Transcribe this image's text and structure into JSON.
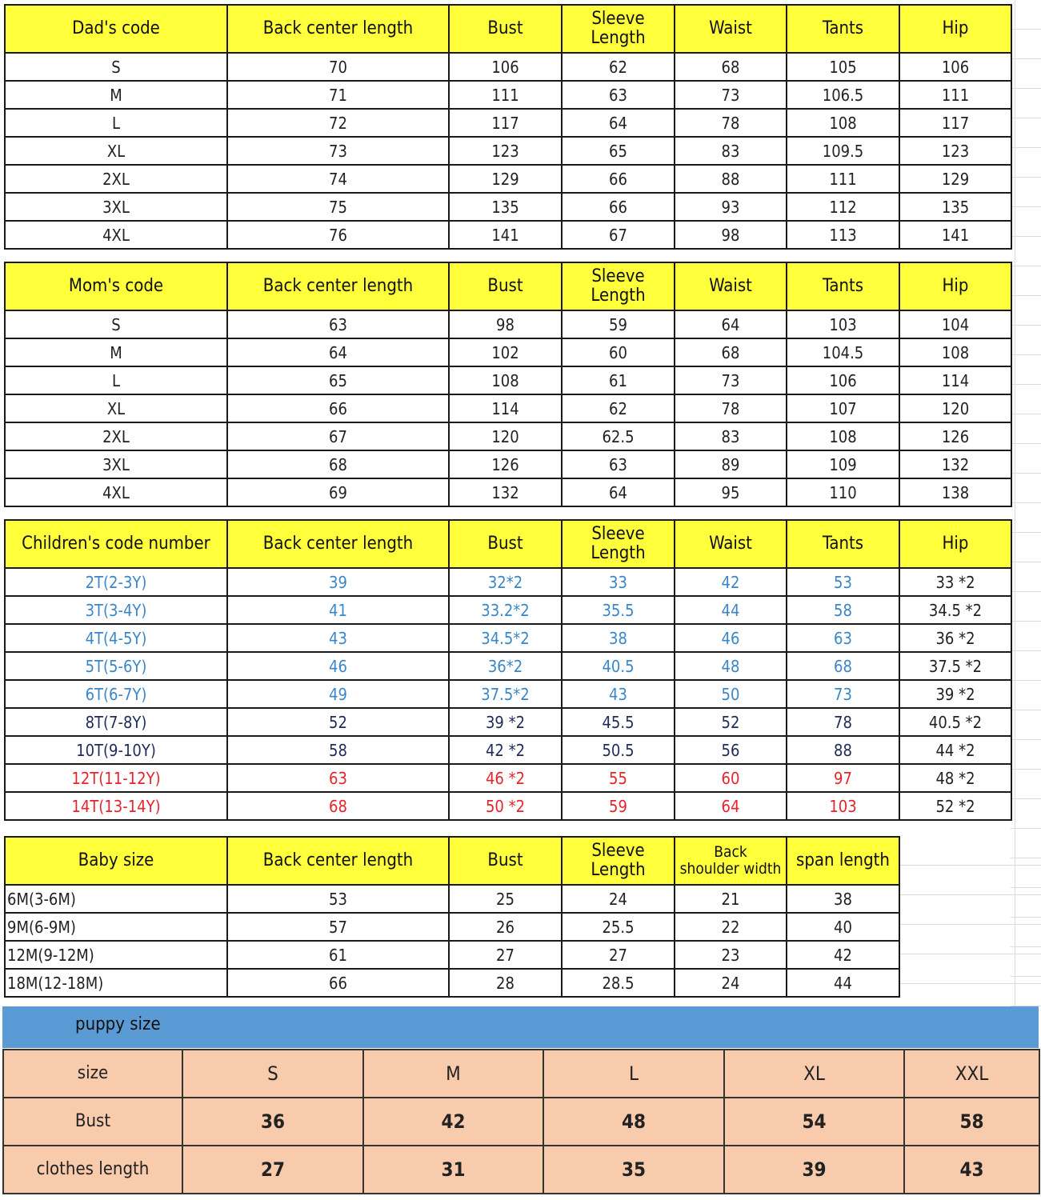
{
  "colors": {
    "header_yellow": "#ffff3c",
    "puppy_band": "#5b9bd5",
    "puppy_cells": "#f8cbad",
    "blue_text": "#3a86c8",
    "navy_text": "#1f2a5c",
    "red_text": "#e8232b"
  },
  "sections": [
    {
      "headers": [
        "Dad's code",
        "Back center length",
        "Bust",
        "Sleeve Length",
        "Waist",
        "Tants",
        "Hip"
      ],
      "rows": [
        {
          "cells": [
            "S",
            "70",
            "106",
            "62",
            "68",
            "105",
            "106"
          ]
        },
        {
          "cells": [
            "M",
            "71",
            "111",
            "63",
            "73",
            "106.5",
            "111"
          ]
        },
        {
          "cells": [
            "L",
            "72",
            "117",
            "64",
            "78",
            "108",
            "117"
          ]
        },
        {
          "cells": [
            "XL",
            "73",
            "123",
            "65",
            "83",
            "109.5",
            "123"
          ]
        },
        {
          "cells": [
            "2XL",
            "74",
            "129",
            "66",
            "88",
            "111",
            "129"
          ]
        },
        {
          "cells": [
            "3XL",
            "75",
            "135",
            "66",
            "93",
            "112",
            "135"
          ]
        },
        {
          "cells": [
            "4XL",
            "76",
            "141",
            "67",
            "98",
            "113",
            "141"
          ]
        }
      ]
    },
    {
      "headers": [
        "Mom's code",
        "Back center length",
        "Bust",
        "Sleeve Length",
        "Waist",
        "Tants",
        "Hip"
      ],
      "rows": [
        {
          "cells": [
            "S",
            "63",
            "98",
            "59",
            "64",
            "103",
            "104"
          ]
        },
        {
          "cells": [
            "M",
            "64",
            "102",
            "60",
            "68",
            "104.5",
            "108"
          ]
        },
        {
          "cells": [
            "L",
            "65",
            "108",
            "61",
            "73",
            "106",
            "114"
          ]
        },
        {
          "cells": [
            "XL",
            "66",
            "114",
            "62",
            "78",
            "107",
            "120"
          ]
        },
        {
          "cells": [
            "2XL",
            "67",
            "120",
            "62.5",
            "83",
            "108",
            "126"
          ]
        },
        {
          "cells": [
            "3XL",
            "68",
            "126",
            "63",
            "89",
            "109",
            "132"
          ]
        },
        {
          "cells": [
            "4XL",
            "69",
            "132",
            "64",
            "95",
            "110",
            "138"
          ]
        }
      ]
    },
    {
      "headers": [
        "Children's code number",
        "Back center length",
        "Bust",
        "Sleeve Length",
        "Waist",
        "Tants",
        "Hip"
      ],
      "rows": [
        {
          "color": "#3a86c8",
          "cells": [
            "2T(2-3Y)",
            "39",
            "32*2",
            "33",
            "42",
            "53",
            "33 *2"
          ]
        },
        {
          "color": "#3a86c8",
          "cells": [
            "3T(3-4Y)",
            "41",
            "33.2*2",
            "35.5",
            "44",
            "58",
            "34.5 *2"
          ]
        },
        {
          "color": "#3a86c8",
          "cells": [
            "4T(4-5Y)",
            "43",
            "34.5*2",
            "38",
            "46",
            "63",
            "36 *2"
          ]
        },
        {
          "color": "#3a86c8",
          "cells": [
            "5T(5-6Y)",
            "46",
            "36*2",
            "40.5",
            "48",
            "68",
            "37.5 *2"
          ]
        },
        {
          "color": "#3a86c8",
          "cells": [
            "6T(6-7Y)",
            "49",
            "37.5*2",
            "43",
            "50",
            "73",
            "39 *2"
          ]
        },
        {
          "color": "#1f2a5c",
          "cells": [
            "8T(7-8Y)",
            "52",
            "39 *2",
            "45.5",
            "52",
            "78",
            "40.5 *2"
          ]
        },
        {
          "color": "#1f2a5c",
          "cells": [
            "10T(9-10Y)",
            "58",
            "42 *2",
            "50.5",
            "56",
            "88",
            "44 *2"
          ]
        },
        {
          "color": "#e8232b",
          "cells": [
            "12T(11-12Y)",
            "63",
            "46 *2",
            "55",
            "60",
            "97",
            "48 *2"
          ]
        },
        {
          "color": "#e8232b",
          "cells": [
            "14T(13-14Y)",
            "68",
            "50 *2",
            "59",
            "64",
            "103",
            "52 *2"
          ]
        }
      ]
    },
    {
      "headers": [
        "Baby size",
        "Back center length",
        "Bust",
        "Sleeve Length",
        "Back shoulder width",
        "span length"
      ],
      "rows": [
        {
          "cells": [
            "6M(3-6M)",
            "53",
            "25",
            "24",
            "21",
            "38"
          ]
        },
        {
          "cells": [
            "9M(6-9M)",
            "57",
            "26",
            "25.5",
            "22",
            "40"
          ]
        },
        {
          "cells": [
            "12M(9-12M)",
            "61",
            "27",
            "27",
            "23",
            "42"
          ]
        },
        {
          "cells": [
            "18M(12-18M)",
            "66",
            "28",
            "28.5",
            "24",
            "44"
          ]
        }
      ]
    }
  ],
  "puppy": {
    "title": "puppy size",
    "rows": [
      {
        "cells": [
          "size",
          "S",
          "M",
          "L",
          "XL",
          "XXL"
        ]
      },
      {
        "cells": [
          "Bust",
          "36",
          "42",
          "48",
          "54",
          "58"
        ]
      },
      {
        "cells": [
          "clothes length",
          "27",
          "31",
          "35",
          "39",
          "43"
        ]
      }
    ]
  }
}
